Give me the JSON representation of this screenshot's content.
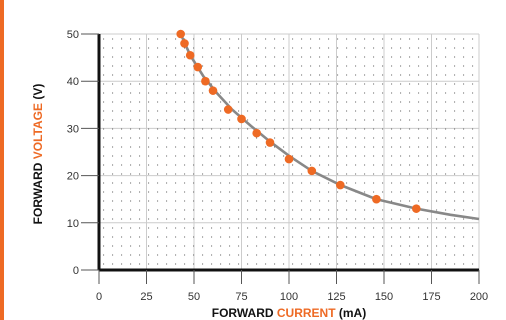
{
  "chart_data": {
    "type": "scatter",
    "title": "",
    "xlabel": {
      "parts": [
        "FORWARD ",
        "CURRENT",
        " (mA)"
      ],
      "highlight_index": 1
    },
    "ylabel": {
      "parts": [
        "FORWARD ",
        "VOLTAGE",
        " (V)"
      ],
      "highlight_index": 1
    },
    "xlim": [
      0,
      200
    ],
    "ylim": [
      0,
      50
    ],
    "x_ticks": [
      0,
      25,
      50,
      75,
      100,
      125,
      150,
      175,
      200
    ],
    "y_ticks": [
      0,
      10,
      20,
      30,
      40,
      50
    ],
    "grid": true,
    "grid_style": "dotted",
    "colors": {
      "accent": "#ee6a24",
      "curve": "#888888",
      "axis": "#111111",
      "left_bar": "#ee6a24"
    },
    "series": [
      {
        "points": [
          [
            43,
            50
          ],
          [
            45,
            48
          ],
          [
            48,
            45.5
          ],
          [
            52,
            43
          ],
          [
            56,
            40
          ],
          [
            60,
            38
          ],
          [
            68,
            34
          ],
          [
            75,
            32
          ],
          [
            83,
            29
          ],
          [
            90,
            27
          ],
          [
            100,
            23.5
          ],
          [
            112,
            21
          ],
          [
            127,
            18
          ],
          [
            146,
            15
          ],
          [
            167,
            13
          ]
        ]
      }
    ],
    "trend_curve": [
      [
        43,
        50
      ],
      [
        48,
        45.5
      ],
      [
        55,
        41
      ],
      [
        62,
        37.5
      ],
      [
        70,
        34
      ],
      [
        80,
        30.5
      ],
      [
        90,
        27.2
      ],
      [
        100,
        24.2
      ],
      [
        112,
        21
      ],
      [
        127,
        18
      ],
      [
        146,
        15
      ],
      [
        167,
        13
      ],
      [
        185,
        11.7
      ],
      [
        200,
        10.8
      ]
    ]
  }
}
